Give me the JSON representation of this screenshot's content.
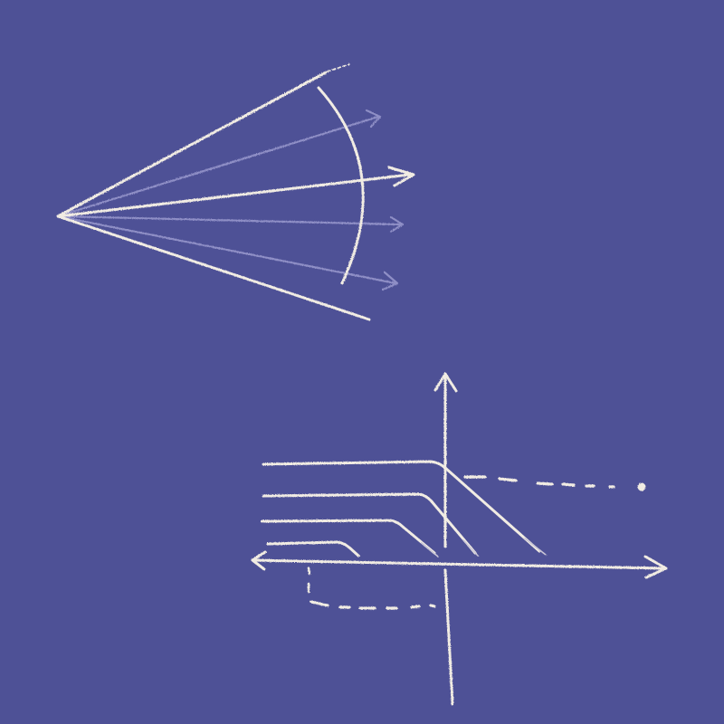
{
  "colors": {
    "background": "#4e5196",
    "chalk": "#f1ece3",
    "chalk_faint": "#8f8fc6"
  },
  "figures": {
    "fan": {
      "icon": "ray-fan-sketch",
      "solid_rays": 3,
      "faint_arrow_rays": 3,
      "solid_arrow_rays": 1,
      "has_wavefront_arc": true
    },
    "graph": {
      "icon": "axes-plot-sketch",
      "axes": [
        "x-axis",
        "y-axis"
      ],
      "curve_count": 4,
      "dotted_levels": [
        "upper",
        "lower"
      ]
    }
  }
}
